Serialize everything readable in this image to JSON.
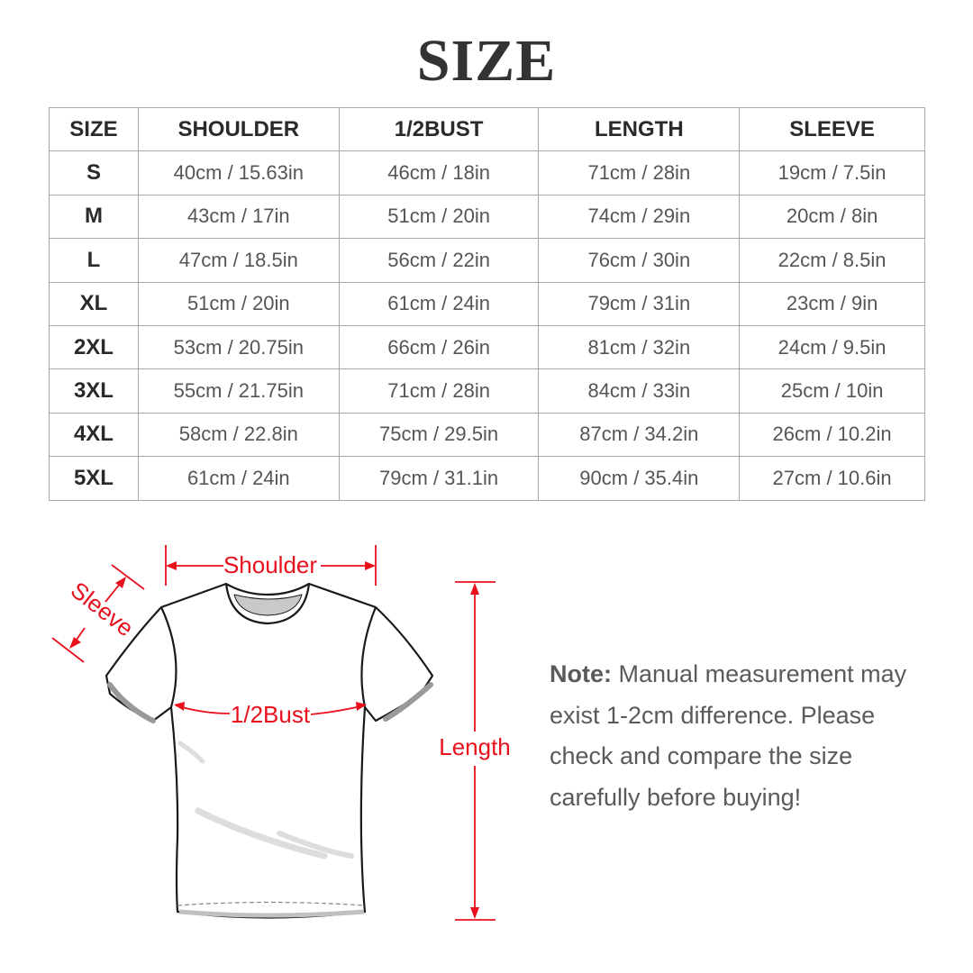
{
  "title": "SIZE",
  "table": {
    "headers": [
      "SIZE",
      "SHOULDER",
      "1/2BUST",
      "LENGTH",
      "SLEEVE"
    ],
    "rows": [
      [
        "S",
        "40cm / 15.63in",
        "46cm / 18in",
        "71cm / 28in",
        "19cm / 7.5in"
      ],
      [
        "M",
        "43cm / 17in",
        "51cm / 20in",
        "74cm / 29in",
        "20cm / 8in"
      ],
      [
        "L",
        "47cm / 18.5in",
        "56cm / 22in",
        "76cm / 30in",
        "22cm / 8.5in"
      ],
      [
        "XL",
        "51cm / 20in",
        "61cm / 24in",
        "79cm / 31in",
        "23cm / 9in"
      ],
      [
        "2XL",
        "53cm / 20.75in",
        "66cm / 26in",
        "81cm / 32in",
        "24cm / 9.5in"
      ],
      [
        "3XL",
        "55cm / 21.75in",
        "71cm / 28in",
        "84cm / 33in",
        "25cm / 10in"
      ],
      [
        "4XL",
        "58cm / 22.8in",
        "75cm / 29.5in",
        "87cm / 34.2in",
        "26cm / 10.2in"
      ],
      [
        "5XL",
        "61cm / 24in",
        "79cm / 31.1in",
        "90cm / 35.4in",
        "27cm / 10.6in"
      ]
    ]
  },
  "diagram": {
    "labels": {
      "shoulder": "Shoulder",
      "sleeve": "Sleeve",
      "bust": "1/2Bust",
      "length": "Length"
    },
    "accent_color": "#e8101c"
  },
  "note": {
    "label": "Note:",
    "text": "Manual measurement may exist 1-2cm difference. Please check and compare the size carefully before buying!"
  }
}
